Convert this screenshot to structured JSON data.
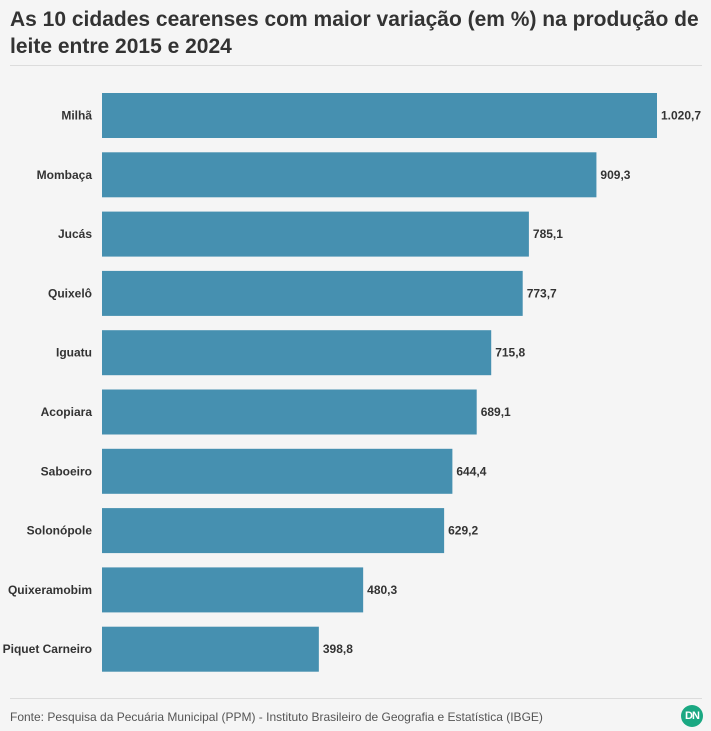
{
  "header": {
    "title": "As 10 cidades cearenses com maior variação (em %) na produção de leite entre 2015 e 2024"
  },
  "footer": {
    "source": "Fonte: Pesquisa da Pecuária Municipal (PPM) - Instituto Brasileiro de Geografia e Estatística (IBGE)",
    "logo_text": "DN"
  },
  "colors": {
    "bar": "#4690b0",
    "label": "#333333",
    "background": "#f5f5f5"
  },
  "chart_data": {
    "type": "bar",
    "orientation": "horizontal",
    "title": "As 10 cidades cearenses com maior variação (em %) na produção de leite entre 2015 e 2024",
    "categories": [
      "Milhã",
      "Mombaça",
      "Jucás",
      "Quixelô",
      "Iguatu",
      "Acopiara",
      "Saboeiro",
      "Solonópole",
      "Quixeramobim",
      "Piquet Carneiro"
    ],
    "values": [
      1020.7,
      909.3,
      785.1,
      773.7,
      715.8,
      689.1,
      644.4,
      629.2,
      480.3,
      398.8
    ],
    "value_labels": [
      "1.020,7",
      "909,3",
      "785,1",
      "773,7",
      "715,8",
      "689,1",
      "644,4",
      "629,2",
      "480,3",
      "398,8"
    ],
    "xlim": [
      0,
      1020.7
    ],
    "grid": false,
    "legend": "none"
  }
}
